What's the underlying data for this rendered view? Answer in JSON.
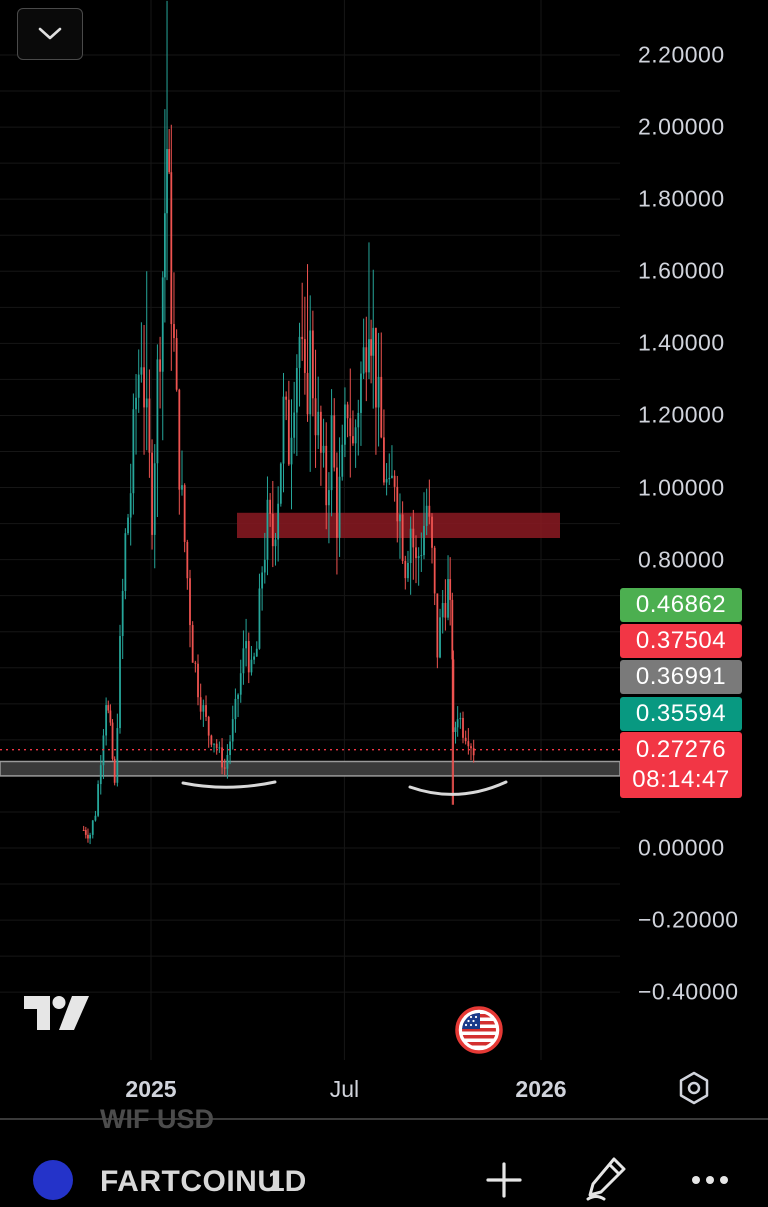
{
  "header": {
    "dropdown": "chevron-down-icon"
  },
  "chart_data": {
    "type": "candlestick",
    "symbol": "FARTCOINU",
    "interval": "1D",
    "y_ticks": [
      "2.20000",
      "2.00000",
      "1.80000",
      "1.60000",
      "1.40000",
      "1.20000",
      "1.00000",
      "0.80000",
      "0.00000",
      "−0.20000",
      "−0.40000"
    ],
    "y_tick_values": [
      2.2,
      2.0,
      1.8,
      1.6,
      1.4,
      1.2,
      1.0,
      0.8,
      0.0,
      -0.2,
      -0.4
    ],
    "x_ticks": [
      "2025",
      "Jul",
      "2026"
    ],
    "x_tick_dates": [
      "2025-01-01",
      "2025-07-01",
      "2026-01-01"
    ],
    "ylim": [
      -0.5,
      2.35
    ],
    "last_price": 0.27276,
    "support_zone": [
      0.2,
      0.24
    ],
    "resistance_zone": [
      0.86,
      0.93
    ],
    "series": [
      {
        "x": "2024-10-30",
        "y": 0.05
      },
      {
        "x": "2024-11-05",
        "y": 0.04
      },
      {
        "x": "2024-11-10",
        "y": 0.1
      },
      {
        "x": "2024-11-15",
        "y": 0.25
      },
      {
        "x": "2024-11-20",
        "y": 0.42
      },
      {
        "x": "2024-11-24",
        "y": 0.32
      },
      {
        "x": "2024-11-28",
        "y": 0.17
      },
      {
        "x": "2024-12-03",
        "y": 0.55
      },
      {
        "x": "2024-12-08",
        "y": 0.85
      },
      {
        "x": "2024-12-13",
        "y": 1.0
      },
      {
        "x": "2024-12-18",
        "y": 1.25
      },
      {
        "x": "2024-12-23",
        "y": 1.4
      },
      {
        "x": "2024-12-28",
        "y": 1.15
      },
      {
        "x": "2025-01-02",
        "y": 0.95
      },
      {
        "x": "2025-01-07",
        "y": 1.3
      },
      {
        "x": "2025-01-12",
        "y": 1.6
      },
      {
        "x": "2025-01-16",
        "y": 1.95
      },
      {
        "x": "2025-01-20",
        "y": 1.55
      },
      {
        "x": "2025-01-25",
        "y": 1.2
      },
      {
        "x": "2025-01-30",
        "y": 0.95
      },
      {
        "x": "2025-02-04",
        "y": 0.75
      },
      {
        "x": "2025-02-09",
        "y": 0.55
      },
      {
        "x": "2025-02-14",
        "y": 0.45
      },
      {
        "x": "2025-02-19",
        "y": 0.38
      },
      {
        "x": "2025-02-24",
        "y": 0.32
      },
      {
        "x": "2025-03-01",
        "y": 0.3
      },
      {
        "x": "2025-03-06",
        "y": 0.26
      },
      {
        "x": "2025-03-11",
        "y": 0.22
      },
      {
        "x": "2025-03-16",
        "y": 0.3
      },
      {
        "x": "2025-03-21",
        "y": 0.38
      },
      {
        "x": "2025-03-26",
        "y": 0.48
      },
      {
        "x": "2025-03-31",
        "y": 0.58
      },
      {
        "x": "2025-04-05",
        "y": 0.48
      },
      {
        "x": "2025-04-10",
        "y": 0.55
      },
      {
        "x": "2025-04-15",
        "y": 0.78
      },
      {
        "x": "2025-04-20",
        "y": 0.9
      },
      {
        "x": "2025-04-25",
        "y": 0.85
      },
      {
        "x": "2025-04-30",
        "y": 1.0
      },
      {
        "x": "2025-05-05",
        "y": 1.2
      },
      {
        "x": "2025-05-10",
        "y": 1.12
      },
      {
        "x": "2025-05-15",
        "y": 1.32
      },
      {
        "x": "2025-05-20",
        "y": 1.42
      },
      {
        "x": "2025-05-25",
        "y": 1.22
      },
      {
        "x": "2025-05-30",
        "y": 1.38
      },
      {
        "x": "2025-06-04",
        "y": 1.22
      },
      {
        "x": "2025-06-09",
        "y": 1.08
      },
      {
        "x": "2025-06-14",
        "y": 0.98
      },
      {
        "x": "2025-06-19",
        "y": 1.15
      },
      {
        "x": "2025-06-24",
        "y": 0.92
      },
      {
        "x": "2025-06-29",
        "y": 1.05
      },
      {
        "x": "2025-07-04",
        "y": 1.25
      },
      {
        "x": "2025-07-09",
        "y": 1.1
      },
      {
        "x": "2025-07-14",
        "y": 1.25
      },
      {
        "x": "2025-07-19",
        "y": 1.35
      },
      {
        "x": "2025-07-24",
        "y": 1.55
      },
      {
        "x": "2025-07-28",
        "y": 1.4
      },
      {
        "x": "2025-08-02",
        "y": 1.2
      },
      {
        "x": "2025-08-07",
        "y": 1.05
      },
      {
        "x": "2025-08-12",
        "y": 0.95
      },
      {
        "x": "2025-08-17",
        "y": 1.05
      },
      {
        "x": "2025-08-22",
        "y": 0.92
      },
      {
        "x": "2025-08-27",
        "y": 0.8
      },
      {
        "x": "2025-09-01",
        "y": 0.9
      },
      {
        "x": "2025-09-06",
        "y": 0.78
      },
      {
        "x": "2025-09-11",
        "y": 0.85
      },
      {
        "x": "2025-09-16",
        "y": 0.95
      },
      {
        "x": "2025-09-21",
        "y": 0.8
      },
      {
        "x": "2025-09-26",
        "y": 0.55
      },
      {
        "x": "2025-10-01",
        "y": 0.68
      },
      {
        "x": "2025-10-06",
        "y": 0.72
      },
      {
        "x": "2025-10-10",
        "y": 0.55
      },
      {
        "x": "2025-10-11",
        "y": 0.3
      },
      {
        "x": "2025-10-15",
        "y": 0.38
      },
      {
        "x": "2025-10-20",
        "y": 0.33
      },
      {
        "x": "2025-10-25",
        "y": 0.31
      },
      {
        "x": "2025-10-30",
        "y": 0.27
      }
    ],
    "price_badges": [
      {
        "value": "0.46862",
        "color": "#4caf50"
      },
      {
        "value": "0.37504",
        "color": "#f23645"
      },
      {
        "value": "0.36991",
        "color": "#7a7a7a"
      },
      {
        "value": "0.35594",
        "color": "#089981"
      }
    ],
    "current_badge": {
      "value": "0.27276",
      "countdown": "08:14:47",
      "color": "#f23645"
    },
    "colors": {
      "up": "#26a69a",
      "down": "#ef5350",
      "resistance": "#8b1a22",
      "support": "#d0d0d0",
      "price_line": "#f23645"
    }
  },
  "watermark": {
    "ghost_text": "WIF USD"
  },
  "bottom_bar": {
    "symbol": "FARTCOINU",
    "interval": "1D",
    "add_icon": "plus-icon",
    "draw_icon": "pencil-icon",
    "more_icon": "more-horizontal-icon"
  },
  "time_axis": {
    "settings_icon": "gear-hexagon-icon"
  }
}
